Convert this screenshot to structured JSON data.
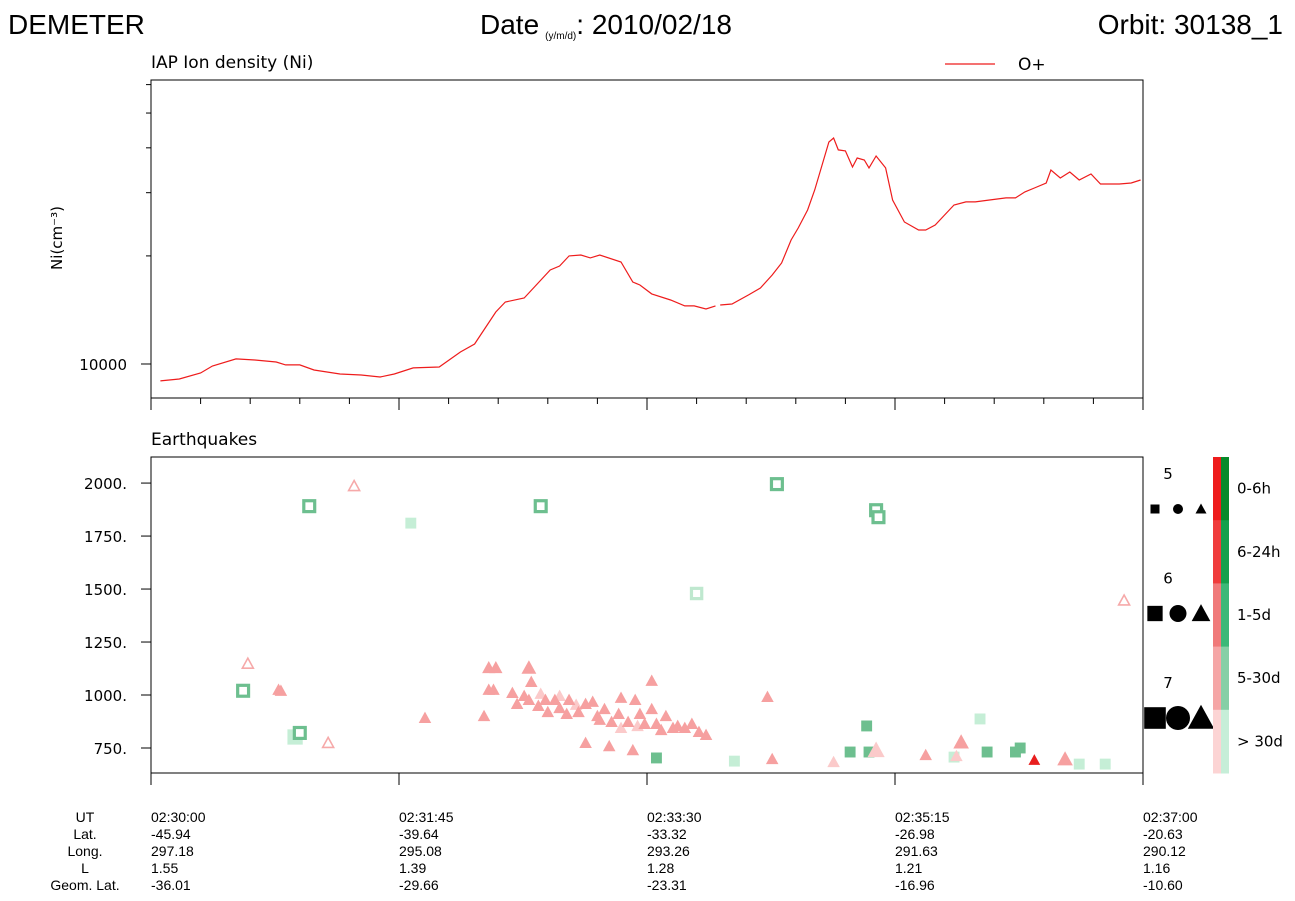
{
  "header": {
    "mission": "DEMETER",
    "date_label": "Date",
    "date_format": "(y/m/d)",
    "date": ": 2010/02/18",
    "orbit": "Orbit: 30138_1"
  },
  "chart_data": [
    {
      "type": "line",
      "title": "IAP Ion density (Ni)",
      "ylabel": "Ni(cm⁻³)",
      "ylog": true,
      "xlim": [
        "02:30:00",
        "02:37:00"
      ],
      "xticks": [
        "02:30:00",
        "02:31:45",
        "02:33:30",
        "02:35:15",
        "02:37:00"
      ],
      "xminorticks": [
        "02:30:21",
        "02:30:42",
        "02:31:03",
        "02:31:24",
        "02:32:06",
        "02:32:27",
        "02:32:48",
        "02:33:09",
        "02:33:51",
        "02:34:12",
        "02:34:33",
        "02:34:54",
        "02:35:36",
        "02:35:57",
        "02:36:18",
        "02:36:39"
      ],
      "ylim": [
        8040,
        61800
      ],
      "yticks": [
        10000
      ],
      "yminorticks": [
        20000,
        30000,
        40000,
        50000,
        60000
      ],
      "series": [
        {
          "name": "O+",
          "color": "#ee1c1c",
          "x": [
            "02:30:04",
            "02:30:12",
            "02:30:21",
            "02:30:26",
            "02:30:36",
            "02:30:44",
            "02:30:53",
            "02:30:57",
            "02:31:03",
            "02:31:09",
            "02:31:20",
            "02:31:29",
            "02:31:37",
            "02:31:43",
            "02:31:51",
            "02:32:02",
            "02:32:11",
            "02:32:17",
            "02:32:26",
            "02:32:30",
            "02:32:38",
            "02:32:49",
            "02:32:53",
            "02:32:57",
            "02:33:02",
            "02:33:06",
            "02:33:10",
            "02:33:19",
            "02:33:24",
            "02:33:27",
            "02:33:32",
            "02:33:40",
            "02:33:46",
            "02:33:50",
            "02:33:55",
            "02:33:59",
            "02:34:00",
            "02:34:01",
            "02:34:06",
            "02:34:13",
            "02:34:18",
            "02:34:23",
            "02:34:27",
            "02:34:31",
            "02:34:34",
            "02:34:38",
            "02:34:41",
            "02:34:47",
            "02:34:49",
            "02:34:51",
            "02:34:54",
            "02:34:57",
            "02:34:59",
            "02:35:02",
            "02:35:04",
            "02:35:07",
            "02:35:11",
            "02:35:14",
            "02:35:19",
            "02:35:25",
            "02:35:28",
            "02:35:32",
            "02:35:36",
            "02:35:40",
            "02:35:45",
            "02:35:49",
            "02:35:55",
            "02:36:02",
            "02:36:06",
            "02:36:10",
            "02:36:14",
            "02:36:19",
            "02:36:21",
            "02:36:25",
            "02:36:29",
            "02:36:33",
            "02:36:38",
            "02:36:42",
            "02:36:50",
            "02:36:55",
            "02:36:59"
          ],
          "values": [
            8970,
            9080,
            9440,
            9870,
            10330,
            10260,
            10130,
            9940,
            9940,
            9620,
            9380,
            9320,
            9200,
            9380,
            9750,
            9810,
            10800,
            11370,
            13960,
            14880,
            15270,
            18270,
            18750,
            20000,
            20120,
            19740,
            20120,
            19230,
            16920,
            16600,
            15670,
            15070,
            14510,
            14510,
            14230,
            14510,
            null,
            14600,
            14690,
            15570,
            16280,
            17700,
            19110,
            22150,
            23920,
            26850,
            30520,
            41530,
            42610,
            39460,
            39210,
            35380,
            37480,
            37000,
            35160,
            37970,
            35160,
            28620,
            24860,
            23610,
            23610,
            24380,
            26000,
            27730,
            28280,
            28280,
            28620,
            29010,
            29010,
            30150,
            30920,
            31920,
            34700,
            32970,
            34260,
            32550,
            33820,
            31720,
            31720,
            31920,
            32550
          ]
        }
      ]
    },
    {
      "type": "scatter",
      "title": "Earthquakes",
      "xlim": [
        "02:30:00",
        "02:37:00"
      ],
      "xticks": [
        "02:30:00",
        "02:31:45",
        "02:33:30",
        "02:35:15",
        "02:37:00"
      ],
      "ylim": [
        632,
        2123
      ],
      "yticks": [
        {
          "value": 750,
          "label": "750."
        },
        {
          "value": 1000,
          "label": "1000."
        },
        {
          "value": 1250,
          "label": "1250."
        },
        {
          "value": 1500,
          "label": "1500."
        },
        {
          "value": 1750,
          "label": "1750."
        },
        {
          "value": 2000,
          "label": "2000."
        }
      ],
      "series": [
        {
          "color": "#c5eed6",
          "marker": "square",
          "filled": true,
          "x": [
            "02:31:50",
            "02:34:07",
            "02:35:40",
            "02:35:51",
            "02:36:33",
            "02:36:44",
            "02:31:01"
          ],
          "values": [
            1811,
            688,
            707,
            887,
            674,
            674,
            802
          ],
          "magnitudes": [
            5.3,
            5.3,
            5.3,
            5.3,
            5.3,
            5.3,
            6
          ]
        },
        {
          "color": "#bfe8cf",
          "marker": "square",
          "filled": false,
          "x": [
            "02:33:51"
          ],
          "values": [
            1479
          ],
          "magnitudes": [
            5.2
          ]
        },
        {
          "color": "#6dbf8f",
          "marker": "square",
          "filled": true,
          "x": [
            "02:33:34",
            "02:35:03",
            "02:34:56",
            "02:35:04",
            "02:35:54",
            "02:36:06",
            "02:36:08"
          ],
          "values": [
            703,
            854,
            731,
            731,
            731,
            731,
            750
          ],
          "magnitudes": [
            5.3,
            5.3,
            5.3,
            5.3,
            5.3,
            5.3,
            5.3
          ]
        },
        {
          "color": "#6dbf8f",
          "marker": "square",
          "filled": false,
          "x": [
            "02:31:07",
            "02:30:39",
            "02:32:45",
            "02:34:25",
            "02:35:07",
            "02:35:08",
            "02:31:03"
          ],
          "values": [
            1891,
            1020,
            1891,
            1995,
            1872,
            1839,
            821
          ],
          "magnitudes": [
            5.3,
            5.3,
            5.3,
            5.3,
            5.3,
            5.3,
            5.3
          ]
        },
        {
          "color": "#fbcaca",
          "marker": "triangle",
          "filled": true,
          "x": [
            "02:32:45",
            "02:32:53",
            "02:33:00",
            "02:33:19",
            "02:33:26",
            "02:34:49",
            "02:35:07",
            "02:35:41"
          ],
          "values": [
            1006,
            996,
            954,
            845,
            854,
            684,
            740,
            712
          ],
          "magnitudes": [
            5.2,
            5.2,
            5.2,
            5.2,
            5.2,
            5.2,
            5.8,
            5.2
          ]
        },
        {
          "color": "#f6a9a9",
          "marker": "triangle",
          "filled": false,
          "x": [
            "02:30:41",
            "02:31:26",
            "02:31:15",
            "02:36:52"
          ],
          "values": [
            1148,
            1986,
            774,
            1446
          ],
          "magnitudes": [
            5,
            5,
            5,
            5
          ]
        },
        {
          "color": "#f6a0a0",
          "marker": "triangle",
          "filled": true,
          "x": [
            "02:30:54",
            "02:30:55",
            "02:31:56",
            "02:33:04",
            "02:33:14",
            "02:33:24",
            "02:34:21",
            "02:34:23",
            "02:35:28",
            "02:35:43",
            "02:36:27",
            "02:32:21",
            "02:32:23",
            "02:32:26",
            "02:32:23",
            "02:32:25",
            "02:32:33",
            "02:32:35",
            "02:32:38",
            "02:32:40",
            "02:32:41",
            "02:32:40",
            "02:32:44",
            "02:32:47",
            "02:32:48",
            "02:32:51",
            "02:32:56",
            "02:32:57",
            "02:33:01",
            "02:33:04",
            "02:33:07",
            "02:33:09",
            "02:33:12",
            "02:33:15",
            "02:33:18",
            "02:33:19",
            "02:33:22",
            "02:33:25",
            "02:33:27",
            "02:33:29",
            "02:33:32",
            "02:33:32",
            "02:33:34",
            "02:33:36",
            "02:33:38",
            "02:33:41",
            "02:33:43",
            "02:33:46",
            "02:33:49",
            "02:33:52",
            "02:33:55",
            "02:32:53",
            "02:33:10"
          ],
          "values": [
            1025,
            1020,
            892,
            774,
            759,
            740,
            991,
            698,
            717,
            778,
            698,
            901,
            1129,
            1129,
            1025,
            1025,
            1010,
            958,
            996,
            1129,
            1062,
            977,
            949,
            977,
            920,
            977,
            911,
            977,
            920,
            958,
            968,
            901,
            934,
            873,
            911,
            987,
            873,
            977,
            911,
            864,
            1067,
            934,
            864,
            835,
            901,
            845,
            854,
            845,
            864,
            826,
            812,
            939,
            883
          ],
          "magnitudes": [
            5.2,
            5.2,
            5.2,
            5.2,
            5.2,
            5.2,
            5.2,
            5.2,
            5.2,
            5.6,
            5.6,
            5.2,
            5.3,
            5.3,
            5.2,
            5.2,
            5.2,
            5.2,
            5.2,
            5.5,
            5.2,
            5.2,
            5.2,
            5.2,
            5.2,
            5.2,
            5.2,
            5.2,
            5.2,
            5.2,
            5.2,
            5.2,
            5.2,
            5.2,
            5.2,
            5.2,
            5.2,
            5.2,
            5.2,
            5.2,
            5.2,
            5.2,
            5.2,
            5.2,
            5.2,
            5.2,
            5.2,
            5.2,
            5.2,
            5.2,
            5.2,
            5.2,
            5.2
          ]
        },
        {
          "color": "#e81e1e",
          "marker": "triangle",
          "filled": true,
          "x": [
            "02:36:14"
          ],
          "values": [
            693
          ],
          "magnitudes": [
            5.1
          ]
        }
      ],
      "magnitude_legend": [
        5,
        6,
        7
      ],
      "colorbar": {
        "labels": [
          "0-6h",
          "6-24h",
          "1-5d",
          "5-30d",
          "> 30d"
        ],
        "left_colors": [
          "#ee1c1c",
          "#f03c3c",
          "#f07a7a",
          "#f5a6a6",
          "#fcd4d4"
        ],
        "right_colors": [
          "#078a2a",
          "#15a04c",
          "#3cb878",
          "#86cfa6",
          "#c6eed8"
        ]
      }
    }
  ],
  "orbit_table": {
    "row_labels": [
      "UT",
      "Lat.",
      "Long.",
      "L",
      "Geom. Lat."
    ],
    "rows": [
      [
        "-45.94",
        "-39.64",
        "-33.32",
        "-26.98",
        "-20.63"
      ],
      [
        "297.18",
        "295.08",
        "293.26",
        "291.63",
        "290.12"
      ],
      [
        "1.55",
        "1.39",
        "1.28",
        "1.21",
        "1.16"
      ],
      [
        "-36.01",
        "-29.66",
        "-23.31",
        "-16.96",
        "-10.60"
      ]
    ]
  }
}
